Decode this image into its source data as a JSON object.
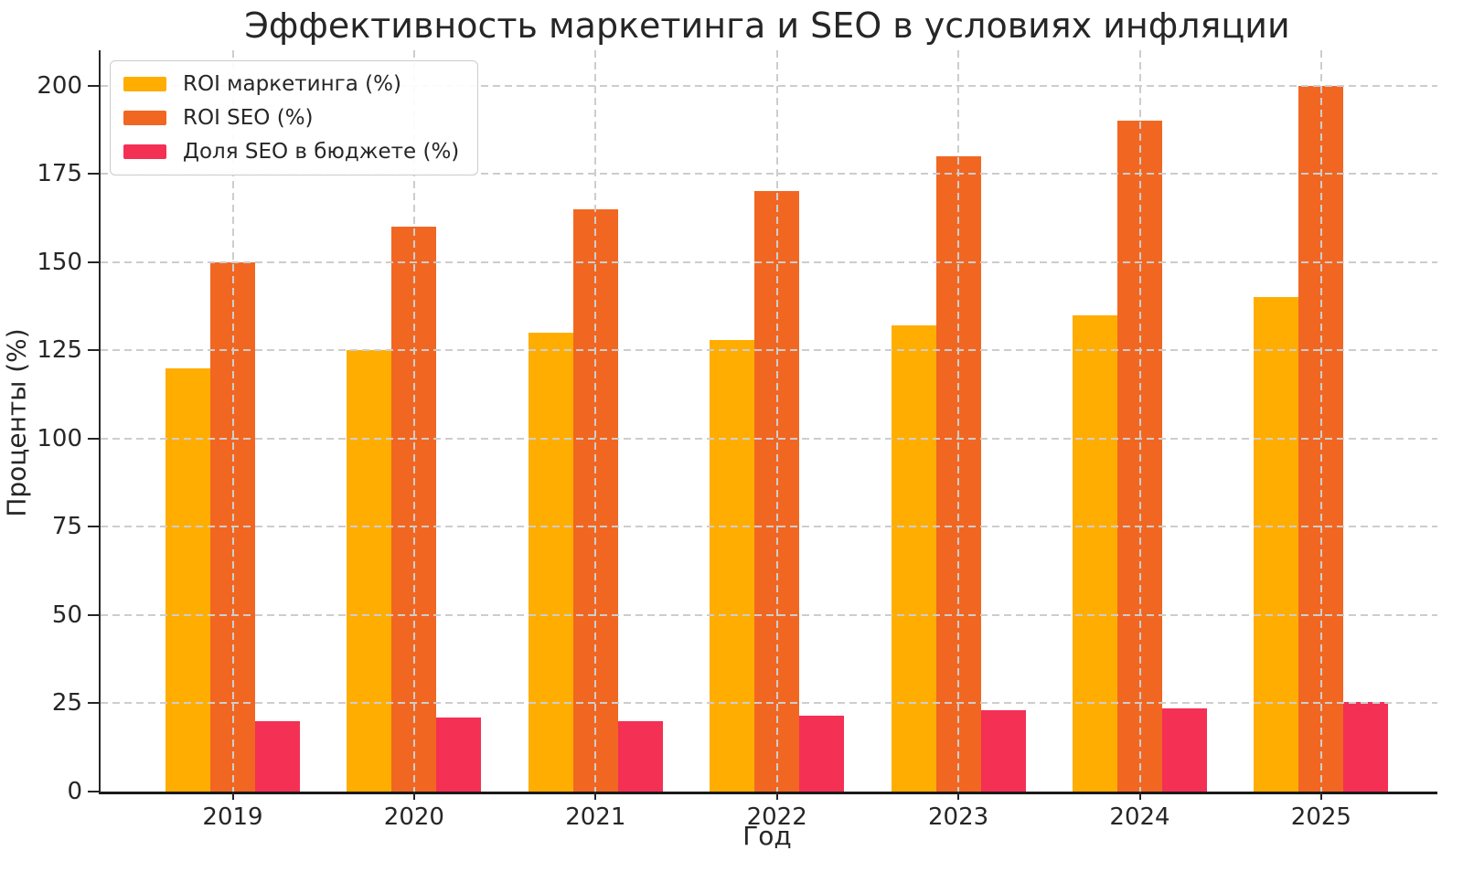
{
  "title": "Эффективность маркетинга и SEO в условиях инфляции",
  "chart_data": {
    "type": "bar",
    "title": "Эффективность маркетинга и SEO в условиях инфляции",
    "xlabel": "Год",
    "ylabel": "Проценты (%)",
    "categories": [
      "2019",
      "2020",
      "2021",
      "2022",
      "2023",
      "2024",
      "2025"
    ],
    "series": [
      {
        "name": "ROI маркетинга (%)",
        "color": "#FFAD00",
        "values": [
          120,
          125,
          130,
          128,
          132,
          135,
          140
        ]
      },
      {
        "name": "ROI SEO (%)",
        "color": "#F16722",
        "values": [
          150,
          160,
          165,
          170,
          180,
          190,
          200
        ]
      },
      {
        "name": "Доля SEO в бюджете (%)",
        "color": "#F43055",
        "values": [
          20,
          21,
          20,
          21.5,
          23,
          23.5,
          25.5
        ]
      }
    ],
    "ylim": [
      0,
      210
    ],
    "yticks": [
      0,
      25,
      50,
      75,
      100,
      125,
      150,
      175,
      200
    ],
    "grid": true,
    "grid_style": "dashed",
    "grid_color": "#cdcdcd",
    "legend_position": "upper left",
    "text_color": "#262626",
    "background_color": "#ffffff"
  }
}
